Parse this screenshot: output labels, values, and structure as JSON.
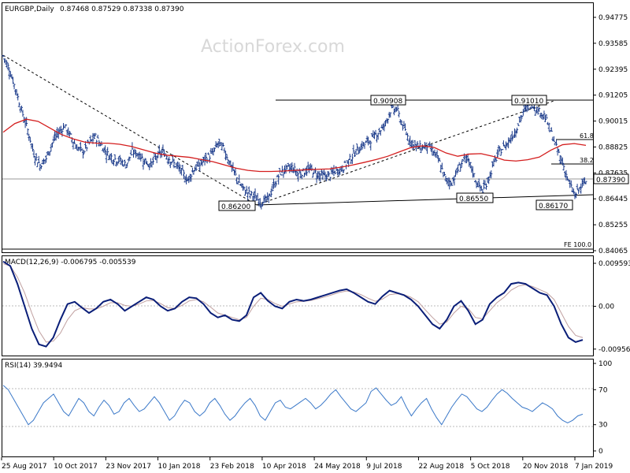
{
  "chart_data": {
    "type": "line",
    "symbol": "EURGBP,Daily",
    "ohlc_readout": "0.87468 0.87529 0.87338 0.87390",
    "watermark": "ActionForex.com",
    "x_tick_labels": [
      "25 Aug 2017",
      "10 Oct 2017",
      "23 Nov 2017",
      "10 Jan 2018",
      "23 Feb 2018",
      "10 Apr 2018",
      "24 May 2018",
      "9 Jul 2018",
      "22 Aug 2018",
      "5 Oct 2018",
      "20 Nov 2018",
      "7 Jan 2019"
    ],
    "price_panel": {
      "y_ticks": [
        "0.94775",
        "0.93585",
        "0.92395",
        "0.91205",
        "0.90015",
        "0.88825",
        "0.87635",
        "0.86445",
        "0.85255",
        "0.84065"
      ],
      "ylim": [
        0.84065,
        0.94775
      ],
      "last_price": "0.87390",
      "closes": [
        0.93,
        0.924,
        0.915,
        0.905,
        0.896,
        0.885,
        0.88,
        0.883,
        0.89,
        0.895,
        0.898,
        0.893,
        0.888,
        0.886,
        0.89,
        0.893,
        0.889,
        0.885,
        0.883,
        0.882,
        0.88,
        0.886,
        0.885,
        0.882,
        0.88,
        0.884,
        0.886,
        0.883,
        0.88,
        0.877,
        0.873,
        0.878,
        0.88,
        0.883,
        0.885,
        0.89,
        0.887,
        0.88,
        0.874,
        0.869,
        0.867,
        0.865,
        0.863,
        0.864,
        0.87,
        0.876,
        0.878,
        0.879,
        0.876,
        0.877,
        0.878,
        0.876,
        0.875,
        0.875,
        0.877,
        0.878,
        0.881,
        0.885,
        0.888,
        0.89,
        0.892,
        0.895,
        0.898,
        0.905,
        0.906,
        0.898,
        0.892,
        0.889,
        0.888,
        0.889,
        0.886,
        0.881,
        0.873,
        0.872,
        0.878,
        0.883,
        0.88,
        0.872,
        0.868,
        0.874,
        0.882,
        0.887,
        0.89,
        0.894,
        0.9,
        0.906,
        0.908,
        0.905,
        0.903,
        0.896,
        0.888,
        0.881,
        0.872,
        0.866,
        0.87,
        0.873
      ],
      "ma_values": [
        0.895,
        0.899,
        0.901,
        0.9,
        0.897,
        0.894,
        0.892,
        0.8905,
        0.89,
        0.89,
        0.8895,
        0.8885,
        0.887,
        0.8855,
        0.8845,
        0.884,
        0.8835,
        0.8825,
        0.8815,
        0.88,
        0.8785,
        0.8775,
        0.877,
        0.877,
        0.8772,
        0.8775,
        0.8778,
        0.878,
        0.8782,
        0.879,
        0.88,
        0.8812,
        0.8825,
        0.884,
        0.886,
        0.888,
        0.8888,
        0.888,
        0.8855,
        0.884,
        0.885,
        0.8852,
        0.884,
        0.8822,
        0.8818,
        0.8824,
        0.8836,
        0.8868,
        0.8893,
        0.8898,
        0.889
      ],
      "levels": [
        {
          "label": "0.90908",
          "value": 0.90908
        },
        {
          "label": "0.91010",
          "value": 0.9101
        },
        {
          "label": "0.86200",
          "value": 0.862
        },
        {
          "label": "0.86550",
          "value": 0.8655
        },
        {
          "label": "0.86170",
          "value": 0.8617
        }
      ],
      "fib_labels": [
        "61.8",
        "38.2",
        "FE 100.0"
      ]
    },
    "macd_panel": {
      "title": "MACD(12,26,9) -0.006795 -0.005539",
      "y_ticks": [
        "0.009593",
        "0.00",
        "-0.009562"
      ],
      "ylim": [
        -0.011,
        0.011
      ],
      "macd": [
        0.01,
        0.009,
        0.005,
        0.0,
        -0.005,
        -0.0085,
        -0.009,
        -0.007,
        -0.003,
        0.0005,
        0.001,
        -0.0003,
        -0.0015,
        -0.0005,
        0.001,
        0.0015,
        0.0005,
        -0.001,
        0.0,
        0.001,
        0.002,
        0.0015,
        0.0,
        -0.001,
        -0.0005,
        0.001,
        0.002,
        0.0018,
        0.0005,
        -0.0015,
        -0.0025,
        -0.002,
        -0.003,
        -0.0033,
        -0.002,
        0.002,
        0.003,
        0.0012,
        0.0,
        -0.0005,
        0.001,
        0.0015,
        0.0012,
        0.0015,
        0.002,
        0.0025,
        0.003,
        0.0035,
        0.0038,
        0.003,
        0.002,
        0.001,
        0.0005,
        0.0022,
        0.0035,
        0.003,
        0.0025,
        0.0015,
        0.0,
        -0.002,
        -0.004,
        -0.005,
        -0.003,
        0.0,
        0.0012,
        -0.001,
        -0.004,
        -0.003,
        0.0005,
        0.002,
        0.003,
        0.005,
        0.0053,
        0.005,
        0.004,
        0.003,
        0.0025,
        0.0,
        -0.004,
        -0.007,
        -0.008,
        -0.0075
      ],
      "signal": [
        0.0095,
        0.009,
        0.0065,
        0.003,
        -0.0015,
        -0.0055,
        -0.008,
        -0.0078,
        -0.006,
        -0.003,
        -0.001,
        -0.0003,
        -0.0006,
        -0.0006,
        0.0,
        0.0008,
        0.0008,
        0.0002,
        0.0,
        0.0005,
        0.0012,
        0.0013,
        0.0006,
        -0.0003,
        -0.0005,
        0.0002,
        0.0012,
        0.0015,
        0.001,
        -0.0002,
        -0.0015,
        -0.002,
        -0.0025,
        -0.003,
        -0.0025,
        0.0,
        0.0018,
        0.0015,
        0.0006,
        0.0,
        0.0005,
        0.001,
        0.0011,
        0.0013,
        0.0017,
        0.0021,
        0.0026,
        0.0031,
        0.0034,
        0.0032,
        0.0026,
        0.0018,
        0.0011,
        0.0016,
        0.0026,
        0.0028,
        0.0026,
        0.002,
        0.001,
        -0.0008,
        -0.0025,
        -0.004,
        -0.0035,
        -0.0015,
        0.0,
        -0.0005,
        -0.0025,
        -0.0028,
        -0.001,
        0.0008,
        0.002,
        0.0036,
        0.0045,
        0.0048,
        0.0044,
        0.0037,
        0.003,
        0.0015,
        -0.0015,
        -0.0045,
        -0.0065,
        -0.007
      ]
    },
    "rsi_panel": {
      "title": "RSI(14) 39.9494",
      "y_ticks": [
        "100",
        "70",
        "30",
        "0"
      ],
      "ylim": [
        0,
        100
      ],
      "values": [
        75,
        70,
        60,
        50,
        40,
        30,
        35,
        45,
        55,
        60,
        65,
        55,
        45,
        40,
        50,
        60,
        55,
        45,
        40,
        50,
        58,
        52,
        42,
        45,
        55,
        60,
        52,
        45,
        48,
        55,
        62,
        55,
        45,
        35,
        40,
        50,
        58,
        55,
        45,
        40,
        45,
        55,
        60,
        52,
        42,
        35,
        40,
        48,
        55,
        60,
        52,
        40,
        35,
        45,
        55,
        58,
        50,
        48,
        52,
        56,
        60,
        55,
        48,
        52,
        58,
        65,
        70,
        62,
        55,
        48,
        45,
        50,
        55,
        68,
        72,
        65,
        58,
        52,
        55,
        62,
        50,
        40,
        48,
        55,
        60,
        48,
        38,
        30,
        40,
        50,
        58,
        65,
        62,
        55,
        48,
        45,
        50,
        58,
        65,
        70,
        66,
        60,
        55,
        50,
        48,
        45,
        50,
        55,
        52,
        48,
        40,
        35,
        32,
        35,
        40,
        42
      ]
    }
  }
}
